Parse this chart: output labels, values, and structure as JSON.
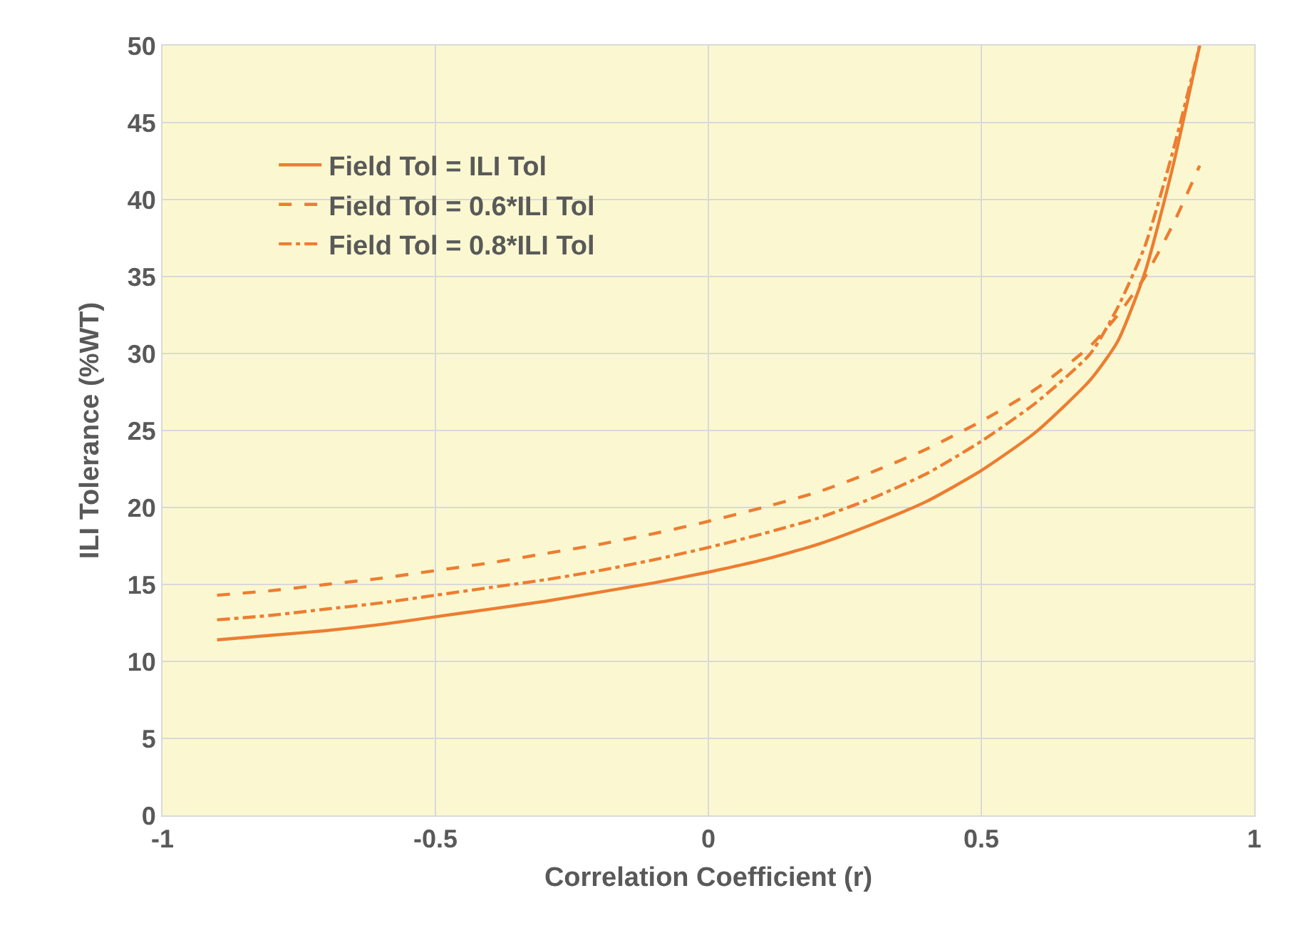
{
  "chart_data": {
    "type": "line",
    "xlabel": "Correlation Coefficient (r)",
    "ylabel": "ILI Tolerance (%WT)",
    "x": [
      -0.9,
      -0.8,
      -0.7,
      -0.6,
      -0.5,
      -0.4,
      -0.3,
      -0.2,
      -0.1,
      0,
      0.1,
      0.2,
      0.3,
      0.4,
      0.5,
      0.6,
      0.7,
      0.75,
      0.8,
      0.85,
      0.9
    ],
    "series": [
      {
        "name": "Field Tol = ILI Tol",
        "color": "#ed7d31",
        "line_style": "solid",
        "values": [
          11.4,
          11.7,
          12.0,
          12.4,
          12.9,
          13.4,
          13.9,
          14.5,
          15.1,
          15.8,
          16.6,
          17.6,
          18.9,
          20.4,
          22.4,
          24.9,
          28.3,
          30.8,
          35.3,
          42,
          50
        ]
      },
      {
        "name": "Field Tol = 0.6*ILI Tol",
        "color": "#ed7d31",
        "line_style": "dashed",
        "values": [
          14.3,
          14.6,
          15.0,
          15.4,
          15.9,
          16.4,
          17.0,
          17.6,
          18.3,
          19.1,
          20.0,
          21.0,
          22.3,
          23.8,
          25.6,
          27.7,
          30.5,
          32.5,
          35,
          38.3,
          42.2
        ]
      },
      {
        "name": "Field Tol = 0.8*ILI Tol",
        "color": "#ed7d31",
        "line_style": "dashdot",
        "values": [
          12.7,
          13.0,
          13.4,
          13.8,
          14.3,
          14.8,
          15.3,
          15.9,
          16.6,
          17.4,
          18.3,
          19.3,
          20.6,
          22.2,
          24.3,
          26.8,
          30,
          33,
          37,
          43,
          50
        ]
      }
    ],
    "xlim": [
      -1,
      1
    ],
    "xticks": [
      -1,
      -0.5,
      0,
      0.5,
      1
    ],
    "ylim": [
      0,
      50
    ],
    "yticks": [
      0,
      5,
      10,
      15,
      20,
      25,
      30,
      35,
      40,
      45,
      50
    ],
    "grid": true,
    "legend": "top left",
    "marker": "none"
  }
}
